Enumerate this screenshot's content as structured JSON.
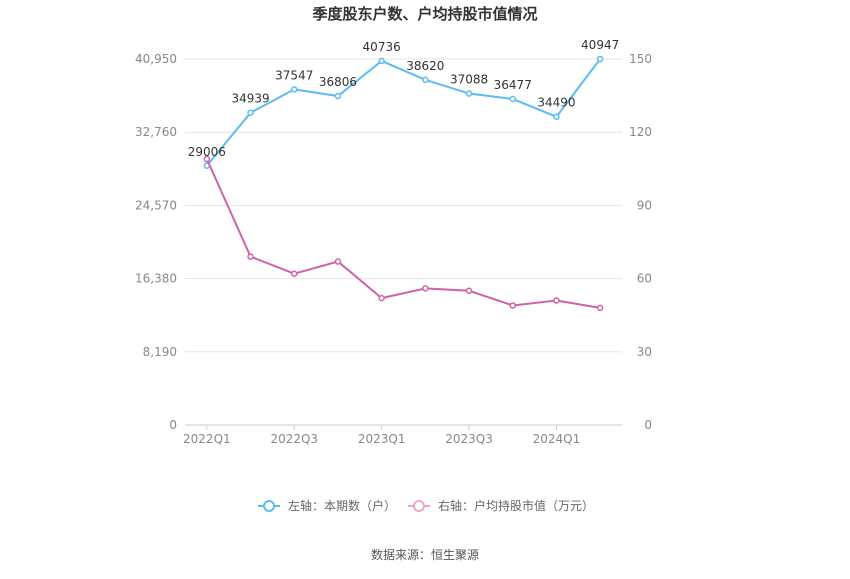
{
  "chart_data": {
    "type": "line",
    "title": "季度股东户数、户均持股市值情况",
    "categories": [
      "2022Q1",
      "2022Q2",
      "2022Q3",
      "2022Q4",
      "2023Q1",
      "2023Q2",
      "2023Q3",
      "2023Q4",
      "2024Q1",
      "2024Q2"
    ],
    "x_tick_labels": [
      "2022Q1",
      "",
      "2022Q3",
      "",
      "2023Q1",
      "",
      "2023Q3",
      "",
      "2024Q1",
      ""
    ],
    "left_axis": {
      "ylim": [
        0,
        40950
      ],
      "ticks": [
        "0",
        "8,190",
        "16,380",
        "24,570",
        "32,760",
        "40,950"
      ],
      "tick_values": [
        0,
        8190,
        16380,
        24570,
        32760,
        40950
      ]
    },
    "right_axis": {
      "ylim": [
        0,
        150
      ],
      "ticks": [
        "0",
        "30",
        "60",
        "90",
        "120",
        "150"
      ],
      "tick_values": [
        0,
        30,
        60,
        90,
        120,
        150
      ]
    },
    "series": [
      {
        "name": "左轴：本期数（户）",
        "axis": "left",
        "color": "#5bbcef",
        "values": [
          29006,
          34939,
          37547,
          36806,
          40736,
          38620,
          37088,
          36477,
          34490,
          40947
        ],
        "labels": [
          "29006",
          "34939",
          "37547",
          "36806",
          "40736",
          "38620",
          "37088",
          "36477",
          "34490",
          "40947"
        ]
      },
      {
        "name": "右轴：户均持股市值（万元）",
        "axis": "right",
        "color": "#d162a9",
        "values": [
          109,
          69,
          62,
          67,
          52,
          56,
          55,
          49,
          51,
          48
        ]
      }
    ],
    "legend_position": "bottom",
    "grid": true,
    "source": "数据来源：恒生聚源"
  }
}
